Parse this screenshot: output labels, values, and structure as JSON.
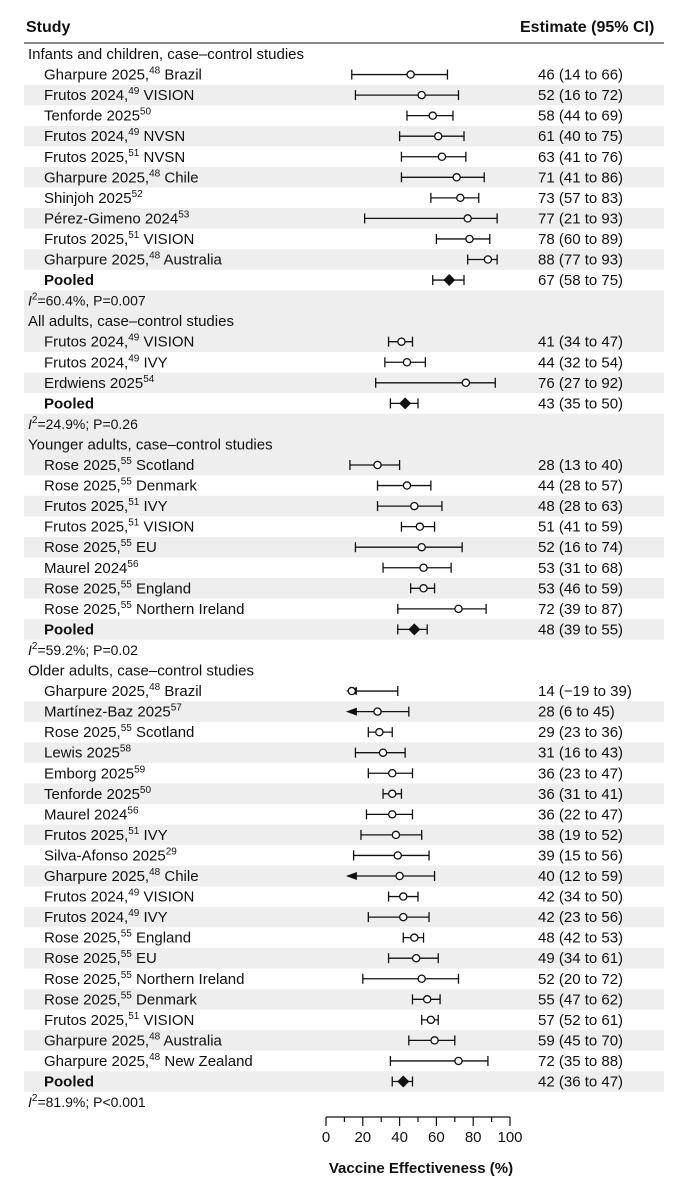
{
  "header": {
    "study_label": "Study",
    "estimate_label": "Estimate (95% CI)"
  },
  "chart_data": {
    "type": "forest",
    "xlabel": "Vaccine Effectiveness (%)",
    "xlim": [
      0,
      100
    ],
    "xticks": [
      "0",
      "20",
      "40",
      "60",
      "80",
      "100"
    ],
    "groups": [
      {
        "title": "Infants and children, case–control studies",
        "studies": [
          {
            "name": "Gharpure 2025,",
            "ref": "48",
            "site": "Brazil",
            "est": 46,
            "lo": 14,
            "hi": 66,
            "ci_text": "46 (14 to 66)"
          },
          {
            "name": "Frutos 2024,",
            "ref": "49",
            "site": "VISION",
            "est": 52,
            "lo": 16,
            "hi": 72,
            "ci_text": "52 (16 to 72)"
          },
          {
            "name": "Tenforde 2025",
            "ref": "50",
            "site": "",
            "est": 58,
            "lo": 44,
            "hi": 69,
            "ci_text": "58 (44 to 69)"
          },
          {
            "name": "Frutos 2024,",
            "ref": "49",
            "site": "NVSN",
            "est": 61,
            "lo": 40,
            "hi": 75,
            "ci_text": "61 (40 to 75)"
          },
          {
            "name": "Frutos 2025,",
            "ref": "51",
            "site": "NVSN",
            "est": 63,
            "lo": 41,
            "hi": 76,
            "ci_text": "63 (41 to 76)"
          },
          {
            "name": "Gharpure 2025,",
            "ref": "48",
            "site": "Chile",
            "est": 71,
            "lo": 41,
            "hi": 86,
            "ci_text": "71 (41 to 86)"
          },
          {
            "name": "Shinjoh 2025",
            "ref": "52",
            "site": "",
            "est": 73,
            "lo": 57,
            "hi": 83,
            "ci_text": "73 (57 to 83)"
          },
          {
            "name": "Pérez-Gimeno 2024",
            "ref": "53",
            "site": "",
            "est": 77,
            "lo": 21,
            "hi": 93,
            "ci_text": "77 (21 to 93)"
          },
          {
            "name": "Frutos 2025,",
            "ref": "51",
            "site": "VISION",
            "est": 78,
            "lo": 60,
            "hi": 89,
            "ci_text": "78 (60 to 89)"
          },
          {
            "name": "Gharpure 2025,",
            "ref": "48",
            "site": "Australia",
            "est": 88,
            "lo": 77,
            "hi": 93,
            "ci_text": "88 (77 to 93)"
          }
        ],
        "pooled": {
          "label": "Pooled",
          "est": 67,
          "lo": 58,
          "hi": 75,
          "ci_text": "67 (58 to 75)"
        },
        "het_i2": "=60.4%, P=0.007"
      },
      {
        "title": "All adults, case–control studies",
        "studies": [
          {
            "name": "Frutos 2024,",
            "ref": "49",
            "site": "VISION",
            "est": 41,
            "lo": 34,
            "hi": 47,
            "ci_text": "41 (34 to 47)"
          },
          {
            "name": "Frutos 2024,",
            "ref": "49",
            "site": "IVY",
            "est": 44,
            "lo": 32,
            "hi": 54,
            "ci_text": "44 (32 to 54)"
          },
          {
            "name": "Erdwiens 2025",
            "ref": "54",
            "site": "",
            "est": 76,
            "lo": 27,
            "hi": 92,
            "ci_text": "76 (27 to 92)"
          }
        ],
        "pooled": {
          "label": "Pooled",
          "est": 43,
          "lo": 35,
          "hi": 50,
          "ci_text": "43 (35 to 50)"
        },
        "het_i2": "=24.9%; P=0.26"
      },
      {
        "title": "Younger adults, case–control studies",
        "studies": [
          {
            "name": "Rose 2025,",
            "ref": "55",
            "site": "Scotland",
            "est": 28,
            "lo": 13,
            "hi": 40,
            "ci_text": "28 (13 to 40)"
          },
          {
            "name": "Rose 2025,",
            "ref": "55",
            "site": "Denmark",
            "est": 44,
            "lo": 28,
            "hi": 57,
            "ci_text": "44 (28 to 57)"
          },
          {
            "name": "Frutos 2025,",
            "ref": "51",
            "site": "IVY",
            "est": 48,
            "lo": 28,
            "hi": 63,
            "ci_text": "48 (28 to 63)"
          },
          {
            "name": "Frutos 2025,",
            "ref": "51",
            "site": "VISION",
            "est": 51,
            "lo": 41,
            "hi": 59,
            "ci_text": "51 (41 to 59)"
          },
          {
            "name": "Rose 2025,",
            "ref": "55",
            "site": "EU",
            "est": 52,
            "lo": 16,
            "hi": 74,
            "ci_text": "52 (16 to 74)"
          },
          {
            "name": "Maurel 2024",
            "ref": "56",
            "site": "",
            "est": 53,
            "lo": 31,
            "hi": 68,
            "ci_text": "53 (31 to 68)"
          },
          {
            "name": "Rose 2025,",
            "ref": "55",
            "site": "England",
            "est": 53,
            "lo": 46,
            "hi": 59,
            "ci_text": "53 (46 to 59)"
          },
          {
            "name": "Rose 2025,",
            "ref": "55",
            "site": "Northern Ireland",
            "est": 72,
            "lo": 39,
            "hi": 87,
            "ci_text": "72 (39 to 87)"
          }
        ],
        "pooled": {
          "label": "Pooled",
          "est": 48,
          "lo": 39,
          "hi": 55,
          "ci_text": "48 (39 to 55)"
        },
        "het_i2": "=59.2%; P=0.02"
      },
      {
        "title": "Older adults, case–control studies",
        "studies": [
          {
            "name": "Gharpure 2025,",
            "ref": "48",
            "site": "Brazil",
            "est": 14,
            "lo": -19,
            "hi": 39,
            "ci_text": "14 (−19 to 39)"
          },
          {
            "name": "Martínez-Baz 2025",
            "ref": "57",
            "site": "",
            "est": 28,
            "lo": 6,
            "hi": 45,
            "ci_text": "28 (6 to 45)"
          },
          {
            "name": "Rose 2025,",
            "ref": "55",
            "site": "Scotland",
            "est": 29,
            "lo": 23,
            "hi": 36,
            "ci_text": "29 (23 to 36)"
          },
          {
            "name": "Lewis 2025",
            "ref": "58",
            "site": "",
            "est": 31,
            "lo": 16,
            "hi": 43,
            "ci_text": "31 (16 to 43)"
          },
          {
            "name": "Emborg 2025",
            "ref": "59",
            "site": "",
            "est": 36,
            "lo": 23,
            "hi": 47,
            "ci_text": "36 (23 to 47)"
          },
          {
            "name": "Tenforde 2025",
            "ref": "50",
            "site": "",
            "est": 36,
            "lo": 31,
            "hi": 41,
            "ci_text": "36 (31 to 41)"
          },
          {
            "name": "Maurel 2024",
            "ref": "56",
            "site": "",
            "est": 36,
            "lo": 22,
            "hi": 47,
            "ci_text": "36 (22 to 47)"
          },
          {
            "name": "Frutos 2025,",
            "ref": "51",
            "site": "IVY",
            "est": 38,
            "lo": 19,
            "hi": 52,
            "ci_text": "38 (19 to 52)"
          },
          {
            "name": "Silva-Afonso 2025",
            "ref": "29",
            "site": "",
            "est": 39,
            "lo": 15,
            "hi": 56,
            "ci_text": "39 (15 to 56)"
          },
          {
            "name": "Gharpure 2025,",
            "ref": "48",
            "site": "Chile",
            "est": 40,
            "lo": 12,
            "hi": 59,
            "ci_text": "40 (12 to 59)"
          },
          {
            "name": "Frutos 2024,",
            "ref": "49",
            "site": "VISION",
            "est": 42,
            "lo": 34,
            "hi": 50,
            "ci_text": "42 (34 to 50)"
          },
          {
            "name": "Frutos 2024,",
            "ref": "49",
            "site": "IVY",
            "est": 42,
            "lo": 23,
            "hi": 56,
            "ci_text": "42 (23 to 56)"
          },
          {
            "name": "Rose 2025,",
            "ref": "55",
            "site": "England",
            "est": 48,
            "lo": 42,
            "hi": 53,
            "ci_text": "48 (42 to 53)"
          },
          {
            "name": "Rose 2025,",
            "ref": "55",
            "site": "EU",
            "est": 49,
            "lo": 34,
            "hi": 61,
            "ci_text": "49 (34 to 61)"
          },
          {
            "name": "Rose 2025,",
            "ref": "55",
            "site": "Northern Ireland",
            "est": 52,
            "lo": 20,
            "hi": 72,
            "ci_text": "52 (20 to 72)"
          },
          {
            "name": "Rose 2025,",
            "ref": "55",
            "site": "Denmark",
            "est": 55,
            "lo": 47,
            "hi": 62,
            "ci_text": "55 (47 to 62)"
          },
          {
            "name": "Frutos 2025,",
            "ref": "51",
            "site": "VISION",
            "est": 57,
            "lo": 52,
            "hi": 61,
            "ci_text": "57 (52 to 61)"
          },
          {
            "name": "Gharpure 2025,",
            "ref": "48",
            "site": "Australia",
            "est": 59,
            "lo": 45,
            "hi": 70,
            "ci_text": "59 (45 to 70)"
          },
          {
            "name": "Gharpure 2025,",
            "ref": "48",
            "site": "New Zealand",
            "est": 72,
            "lo": 35,
            "hi": 88,
            "ci_text": "72 (35 to 88)"
          }
        ],
        "pooled": {
          "label": "Pooled",
          "est": 42,
          "lo": 36,
          "hi": 47,
          "ci_text": "42 (36 to 47)"
        },
        "het_i2": "=81.9%; P<0.001"
      }
    ]
  }
}
